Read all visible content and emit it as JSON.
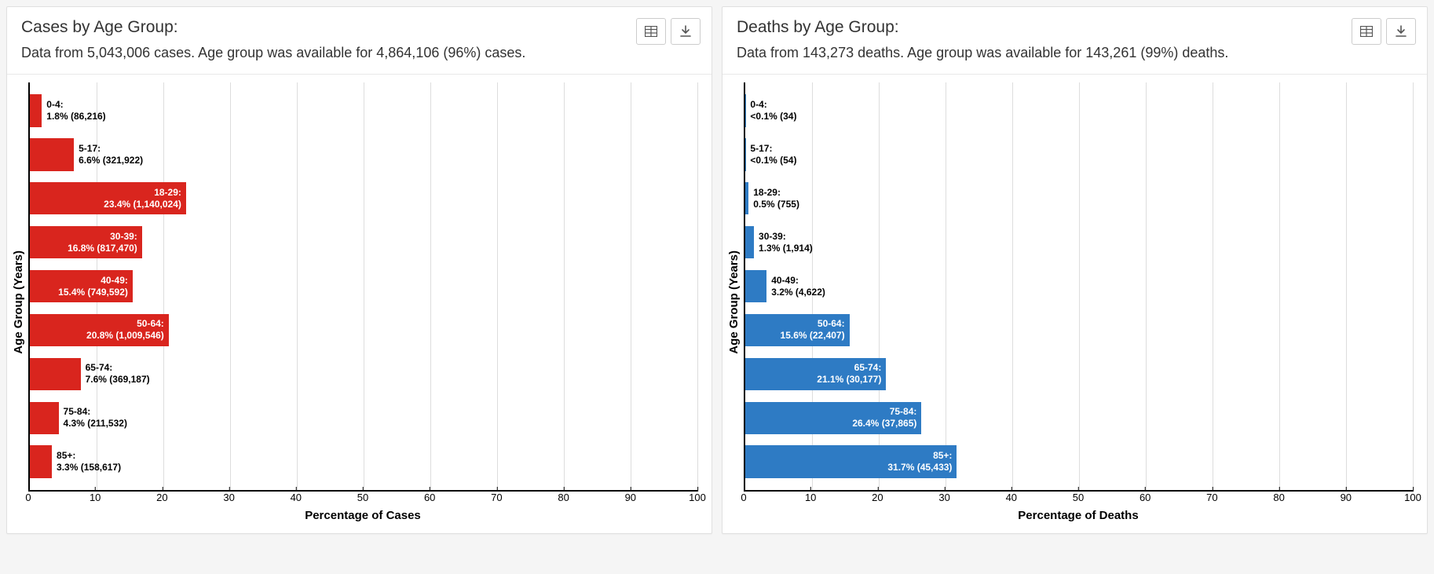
{
  "page_background": "#f5f5f5",
  "panel_background": "#ffffff",
  "panel_border": "#e0e0e0",
  "grid_color": "#dddddd",
  "text_color": "#333333",
  "axis_color": "#000000",
  "charts": [
    {
      "title": "Cases by Age Group:",
      "subtitle": "Data from 5,043,006 cases. Age group was available for 4,864,106 (96%) cases.",
      "y_label": "Age Group (Years)",
      "x_label": "Percentage of Cases",
      "bar_color": "#d9251e",
      "x_min": 0,
      "x_max": 100,
      "x_tick_step": 10,
      "label_threshold_pct": 14,
      "categories": [
        {
          "group": "0-4",
          "pct": 1.8,
          "pct_label": "1.8%",
          "count": "86,216"
        },
        {
          "group": "5-17",
          "pct": 6.6,
          "pct_label": "6.6%",
          "count": "321,922"
        },
        {
          "group": "18-29",
          "pct": 23.4,
          "pct_label": "23.4%",
          "count": "1,140,024"
        },
        {
          "group": "30-39",
          "pct": 16.8,
          "pct_label": "16.8%",
          "count": "817,470"
        },
        {
          "group": "40-49",
          "pct": 15.4,
          "pct_label": "15.4%",
          "count": "749,592"
        },
        {
          "group": "50-64",
          "pct": 20.8,
          "pct_label": "20.8%",
          "count": "1,009,546"
        },
        {
          "group": "65-74",
          "pct": 7.6,
          "pct_label": "7.6%",
          "count": "369,187"
        },
        {
          "group": "75-84",
          "pct": 4.3,
          "pct_label": "4.3%",
          "count": "211,532"
        },
        {
          "group": "85+",
          "pct": 3.3,
          "pct_label": "3.3%",
          "count": "158,617"
        }
      ]
    },
    {
      "title": "Deaths by Age Group:",
      "subtitle": "Data from 143,273 deaths. Age group was available for 143,261 (99%) deaths.",
      "y_label": "Age Group (Years)",
      "x_label": "Percentage of Deaths",
      "bar_color": "#2e7bc4",
      "x_min": 0,
      "x_max": 100,
      "x_tick_step": 10,
      "label_threshold_pct": 14,
      "categories": [
        {
          "group": "0-4",
          "pct": 0.05,
          "pct_label": "<0.1%",
          "count": "34"
        },
        {
          "group": "5-17",
          "pct": 0.05,
          "pct_label": "<0.1%",
          "count": "54"
        },
        {
          "group": "18-29",
          "pct": 0.5,
          "pct_label": "0.5%",
          "count": "755"
        },
        {
          "group": "30-39",
          "pct": 1.3,
          "pct_label": "1.3%",
          "count": "1,914"
        },
        {
          "group": "40-49",
          "pct": 3.2,
          "pct_label": "3.2%",
          "count": "4,622"
        },
        {
          "group": "50-64",
          "pct": 15.6,
          "pct_label": "15.6%",
          "count": "22,407"
        },
        {
          "group": "65-74",
          "pct": 21.1,
          "pct_label": "21.1%",
          "count": "30,177"
        },
        {
          "group": "75-84",
          "pct": 26.4,
          "pct_label": "26.4%",
          "count": "37,865"
        },
        {
          "group": "85+",
          "pct": 31.7,
          "pct_label": "31.7%",
          "count": "45,433"
        }
      ]
    }
  ],
  "icons": {
    "table": "table-icon",
    "download": "download-icon"
  }
}
